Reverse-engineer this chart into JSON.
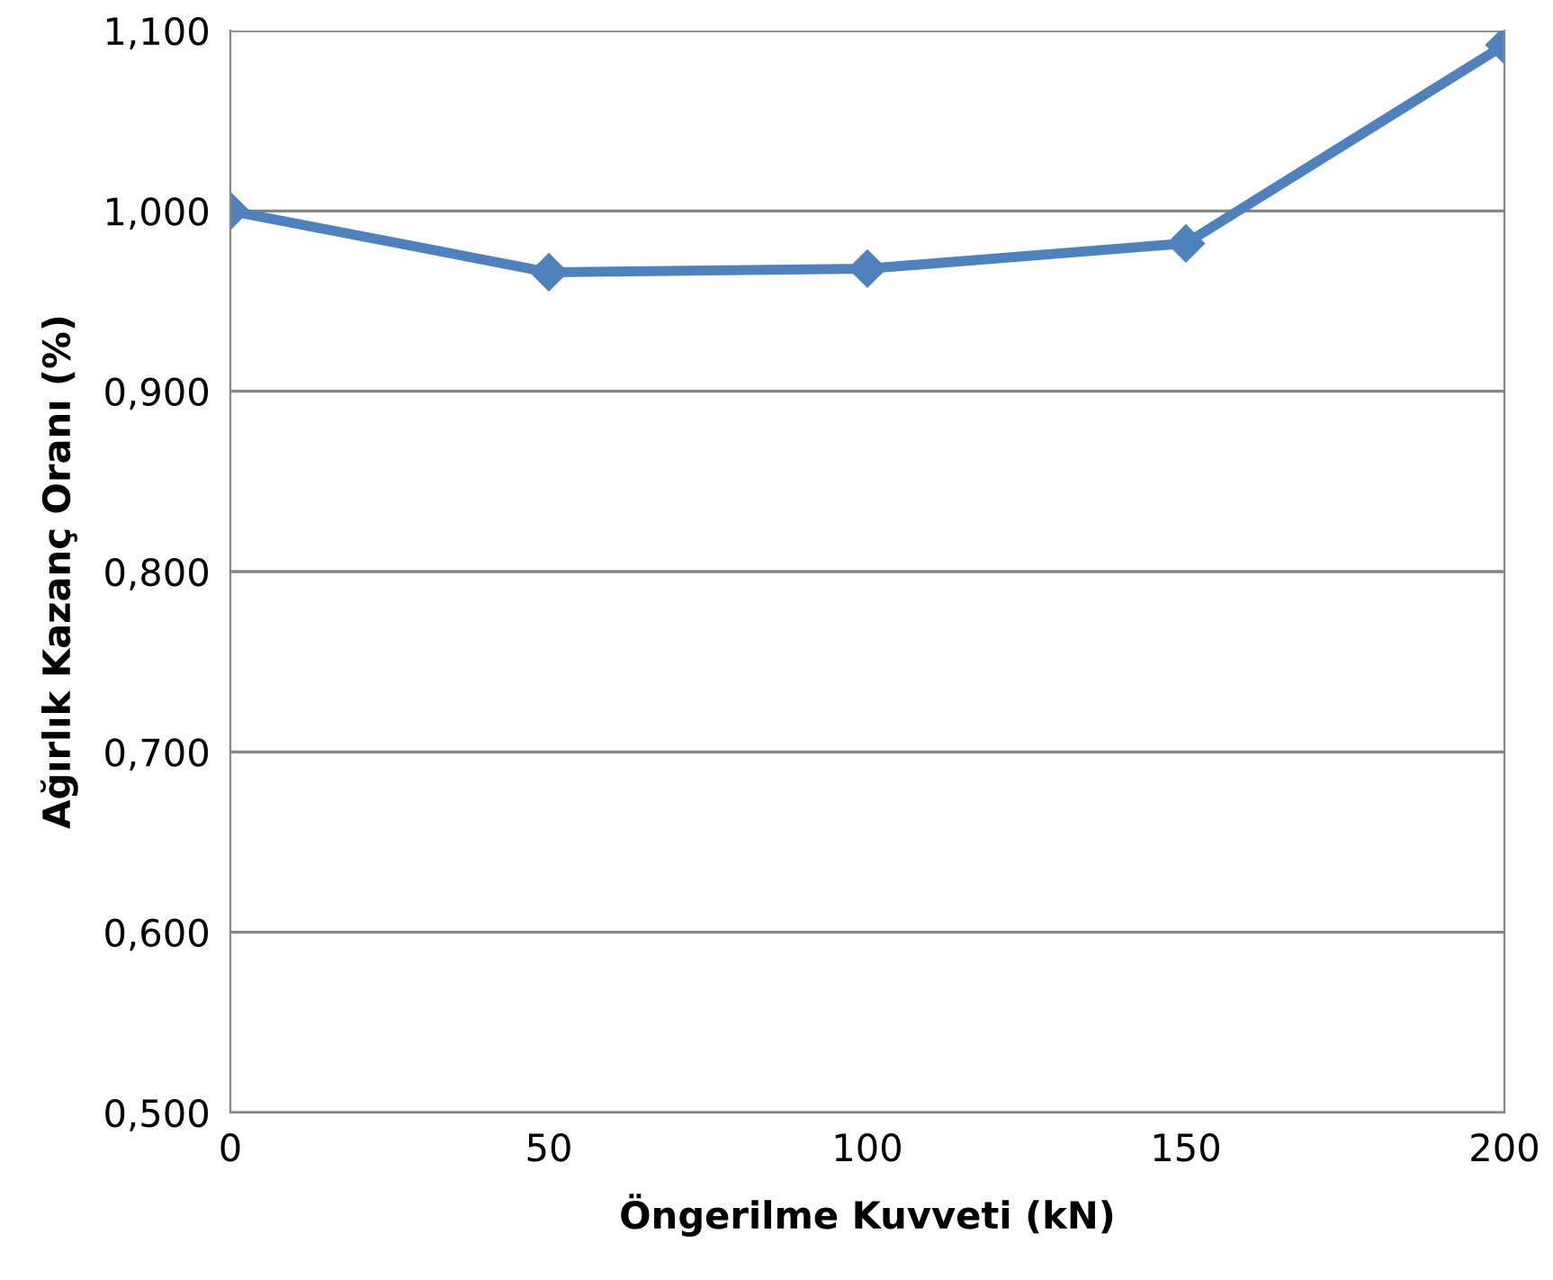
{
  "chart_data": {
    "type": "line",
    "xlabel": "Öngerilme Kuvveti (kN)",
    "ylabel": "Ağırlık Kazanç Oranı (%)",
    "x": [
      0,
      50,
      100,
      150,
      200
    ],
    "series": [
      {
        "color": "#4f81bd",
        "values": [
          1.0,
          0.966,
          0.968,
          0.982,
          1.092
        ]
      }
    ],
    "xlim": [
      0,
      200
    ],
    "xticks": [
      0,
      50,
      100,
      150,
      200
    ],
    "ylim": [
      0.5,
      1.1
    ],
    "yticks": [
      {
        "value": 0.5,
        "label": "0,500"
      },
      {
        "value": 0.6,
        "label": "0,600"
      },
      {
        "value": 0.7,
        "label": "0,700"
      },
      {
        "value": 0.8,
        "label": "0,800"
      },
      {
        "value": 0.9,
        "label": "0,900"
      },
      {
        "value": 1.0,
        "label": "1,000"
      },
      {
        "value": 1.1,
        "label": "1,100"
      }
    ],
    "grid": "y",
    "marker": "diamond",
    "line_style": "solid",
    "legend": false
  }
}
